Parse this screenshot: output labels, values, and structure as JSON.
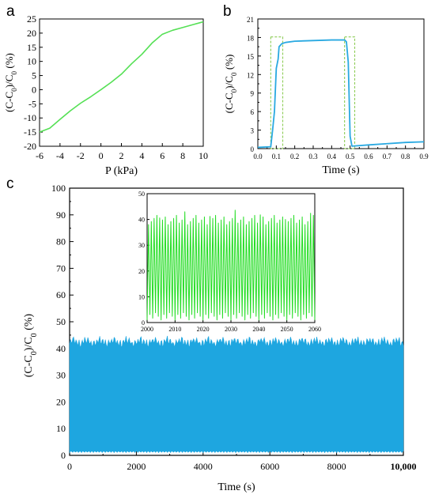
{
  "figure": {
    "panel_labels": [
      "a",
      "b",
      "c"
    ]
  },
  "chart_data": [
    {
      "id": "a",
      "type": "line",
      "xlabel": "P (kPa)",
      "ylabel": "(C-C₀)/C₀ (%)",
      "xlim": [
        -6,
        10
      ],
      "ylim": [
        -20,
        25
      ],
      "xticks": [
        -6,
        -4,
        -2,
        0,
        2,
        4,
        6,
        8,
        10
      ],
      "yticks": [
        -20,
        -15,
        -10,
        -5,
        0,
        5,
        10,
        15,
        20,
        25
      ],
      "grid": false,
      "color": "#55e055",
      "series": [
        {
          "x": [
            -6,
            -5,
            -4,
            -3,
            -2,
            -1,
            0,
            1,
            2,
            3,
            4,
            5,
            6,
            7,
            8,
            9,
            10
          ],
          "y": [
            -15,
            -13.6,
            -10.5,
            -7.5,
            -4.8,
            -2.5,
            0,
            2.6,
            5.5,
            9.2,
            12.5,
            16.5,
            19.6,
            21,
            22,
            23,
            24
          ]
        }
      ]
    },
    {
      "id": "b",
      "type": "line",
      "xlabel": "Time (s)",
      "ylabel": "(C-C₀)/C₀ (%)",
      "xlim": [
        0,
        0.9
      ],
      "ylim": [
        0,
        21
      ],
      "xticks": [
        0.0,
        0.1,
        0.2,
        0.3,
        0.4,
        0.5,
        0.6,
        0.7,
        0.8,
        0.9
      ],
      "xtick_labels": [
        "0.0",
        "0.1",
        "0.2",
        "0.3",
        "0.4",
        "0.5",
        "0.6",
        "0.7",
        "0.8",
        "0.9"
      ],
      "yticks": [
        0,
        3,
        6,
        9,
        12,
        15,
        18,
        21
      ],
      "grid": false,
      "color": "#29a9e1",
      "highlight_color": "#8ccc55",
      "highlight_boxes": [
        {
          "x0": 0.07,
          "x1": 0.135,
          "y0": 0,
          "y1": 18.1
        },
        {
          "x0": 0.47,
          "x1": 0.525,
          "y0": 0,
          "y1": 18.1
        }
      ],
      "series": [
        {
          "x": [
            0,
            0.07,
            0.08,
            0.09,
            0.095,
            0.1,
            0.11,
            0.115,
            0.13,
            0.15,
            0.2,
            0.3,
            0.4,
            0.47,
            0.48,
            0.49,
            0.5,
            0.51,
            0.6,
            0.7,
            0.8,
            0.9
          ],
          "y": [
            0.2,
            0.3,
            3,
            6,
            9.5,
            13,
            14.5,
            16.5,
            17,
            17.2,
            17.4,
            17.5,
            17.6,
            17.6,
            17.3,
            14,
            2,
            0.4,
            0.6,
            0.8,
            1.0,
            1.1
          ]
        }
      ]
    },
    {
      "id": "c",
      "type": "line",
      "xlabel": "Time (s)",
      "ylabel": "(C-C₀)/C₀ (%)",
      "xlim": [
        0,
        10000
      ],
      "ylim": [
        0,
        100
      ],
      "xticks": [
        0,
        2000,
        4000,
        6000,
        8000,
        10000
      ],
      "xtick_labels": [
        "0",
        "2000",
        "4000",
        "6000",
        "8000",
        "10,000"
      ],
      "yticks": [
        0,
        10,
        20,
        30,
        40,
        50,
        60,
        70,
        80,
        90,
        100
      ],
      "grid": false,
      "color": "#1ea6e0",
      "signal": {
        "low": 1,
        "high": 42.5,
        "description_only": false
      }
    },
    {
      "id": "c-inset",
      "type": "line",
      "xlim": [
        2000,
        2060
      ],
      "ylim": [
        0,
        50
      ],
      "xticks": [
        2000,
        2010,
        2020,
        2030,
        2040,
        2050,
        2060
      ],
      "yticks": [
        0,
        10,
        20,
        30,
        40,
        50
      ],
      "grid": false,
      "color": "#22dd22",
      "period_s": 1.0,
      "signal": {
        "low": 1,
        "high": 41
      }
    }
  ]
}
